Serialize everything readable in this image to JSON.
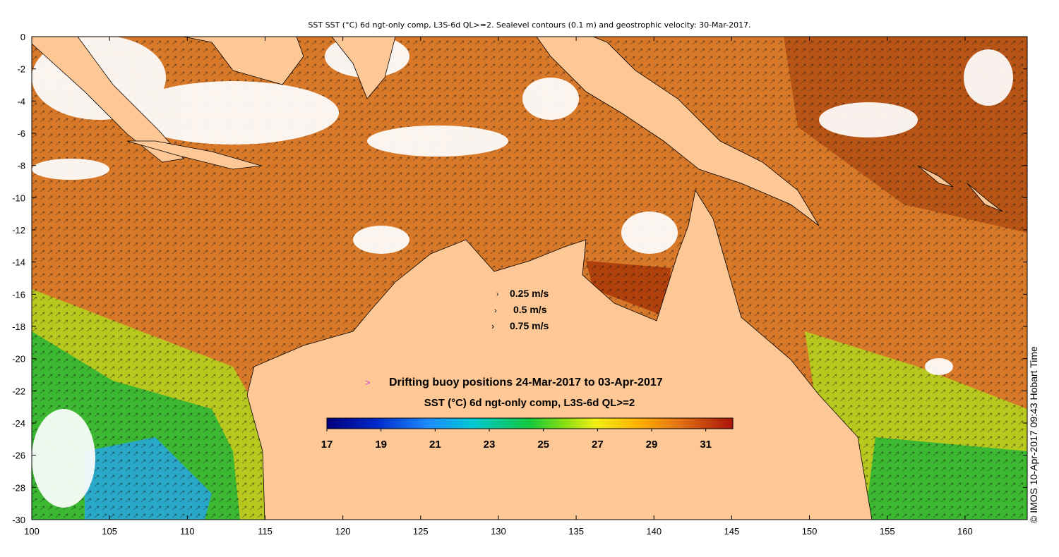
{
  "title": "SST SST (°C) 6d ngt-only comp, L3S-6d QL>=2. Sealevel contours (0.1 m) and geostrophic velocity: 30-Mar-2017.",
  "side_text": "© IMOS 10-Apr-2017 09:43 Hobart Time",
  "axes": {
    "x_ticks": [
      "100",
      "105",
      "110",
      "115",
      "120",
      "125",
      "130",
      "135",
      "140",
      "145",
      "150",
      "155",
      "160"
    ],
    "y_ticks": [
      "0",
      "-2",
      "-4",
      "-6",
      "-8",
      "-10",
      "-12",
      "-14",
      "-16",
      "-18",
      "-20",
      "-22",
      "-24",
      "-26",
      "-28",
      "-30"
    ]
  },
  "velocity_legend": [
    {
      "label": "0.25 m/s"
    },
    {
      "label": "0.5 m/s"
    },
    {
      "label": "0.75 m/s"
    }
  ],
  "buoy_legend": {
    "marker": ">",
    "text": "Drifting buoy positions 24-Mar-2017 to 03-Apr-2017",
    "marker_color": "#d040d0"
  },
  "colorbar": {
    "title": "SST (°C) 6d ngt-only comp, L3S-6d QL>=2",
    "ticks": [
      "17",
      "19",
      "21",
      "23",
      "25",
      "27",
      "29",
      "31"
    ],
    "min": 17,
    "max": 32
  },
  "colors": {
    "land": "#fdc896",
    "warm": "#d2691e",
    "green": "#3cb832",
    "cool": "#2aa8c8"
  }
}
